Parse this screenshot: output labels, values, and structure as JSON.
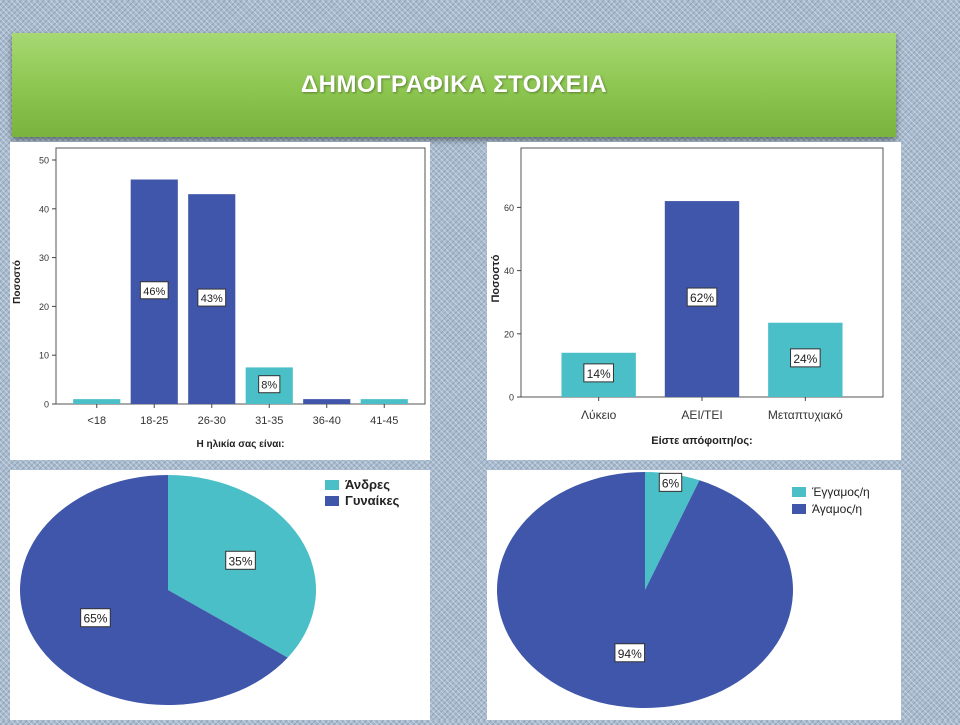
{
  "header": {
    "title": "ΔΗΜΟΓΡΑΦΙΚΑ ΣΤΟΙΧΕΙΑ"
  },
  "colors": {
    "dark": "#3f56aa",
    "light": "#4bbfc7",
    "banner": "#8cc54f"
  },
  "chart_data": [
    {
      "type": "bar",
      "xlabel": "Η ηλικία σας είναι:",
      "ylabel": "Ποσοστό",
      "ylim": [
        0,
        50
      ],
      "yticks": [
        0,
        10,
        20,
        30,
        40,
        50
      ],
      "categories": [
        "<18",
        "18-25",
        "26-30",
        "31-35",
        "36-40",
        "41-45"
      ],
      "values": [
        1,
        46,
        43,
        7.5,
        1,
        1
      ],
      "bar_colors": [
        "light",
        "dark",
        "dark",
        "light",
        "dark",
        "light"
      ],
      "data_labels": [
        "",
        "46%",
        "43%",
        "8%",
        "",
        ""
      ],
      "grid": false
    },
    {
      "type": "bar",
      "xlabel": "Είστε απόφοιτη/ος:",
      "ylabel": "Ποσοστό",
      "ylim": [
        0,
        75
      ],
      "yticks": [
        0,
        20,
        40,
        60
      ],
      "categories": [
        "Λύκειο",
        "ΑΕΙ/ΤΕΙ",
        "Μεταπτυχιακό"
      ],
      "values": [
        14,
        62,
        23.5
      ],
      "bar_colors": [
        "light",
        "dark",
        "light"
      ],
      "data_labels": [
        "14%",
        "62%",
        "24%"
      ],
      "grid": false
    },
    {
      "type": "pie",
      "categories": [
        "Άνδρες",
        "Γυναίκες"
      ],
      "values": [
        35,
        65
      ],
      "colors": [
        "light",
        "dark"
      ],
      "data_labels": [
        "35%",
        "65%"
      ],
      "legend": "top-right"
    },
    {
      "type": "pie",
      "categories": [
        "Έγγαμος/η",
        "Άγαμος/η"
      ],
      "values": [
        6,
        94
      ],
      "colors": [
        "light",
        "dark"
      ],
      "data_labels": [
        "6%",
        "94%"
      ],
      "legend": "top-right"
    }
  ]
}
